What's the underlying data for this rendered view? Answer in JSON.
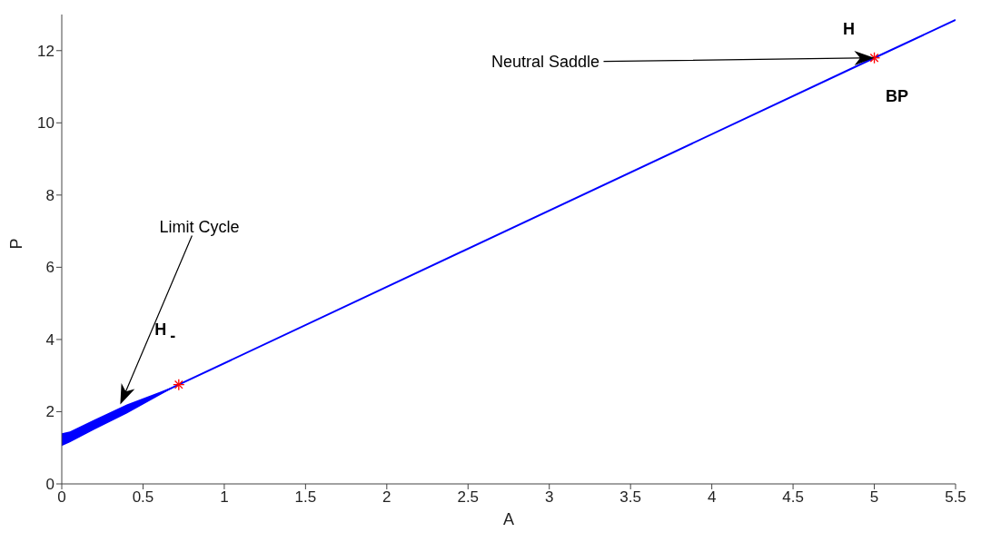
{
  "chart_data": {
    "type": "line",
    "xlabel": "A",
    "ylabel": "P",
    "xlim": [
      0,
      5.5
    ],
    "ylim": [
      0,
      13
    ],
    "xticks": [
      0,
      0.5,
      1,
      1.5,
      2,
      2.5,
      3,
      3.5,
      4,
      4.5,
      5,
      5.5
    ],
    "yticks": [
      0,
      2,
      4,
      6,
      8,
      10,
      12
    ],
    "grid": false,
    "legend": false,
    "series": [
      {
        "type": "line",
        "color": "#0000ff",
        "x": [
          0,
          0.05,
          0.2,
          0.4,
          0.72
        ],
        "values": [
          1.22,
          1.3,
          1.64,
          2.07,
          2.75
        ],
        "lower": [
          1.05,
          1.15,
          1.5,
          1.95,
          2.75
        ],
        "upper": [
          1.4,
          1.45,
          1.78,
          2.2,
          2.75
        ]
      },
      {
        "type": "line",
        "color": "#0000ff",
        "x": [
          0.72,
          5,
          5.5
        ],
        "values": [
          2.75,
          11.8,
          12.85
        ]
      },
      {
        "type": "scatter",
        "color": "#ff0000",
        "marker": "cross",
        "x": [
          0.72,
          5
        ],
        "values": [
          2.75,
          11.8
        ]
      }
    ],
    "annotations": [
      "Limit Cycle",
      "H$_{-}$",
      "Neutral Saddle",
      "H",
      "BP"
    ]
  }
}
